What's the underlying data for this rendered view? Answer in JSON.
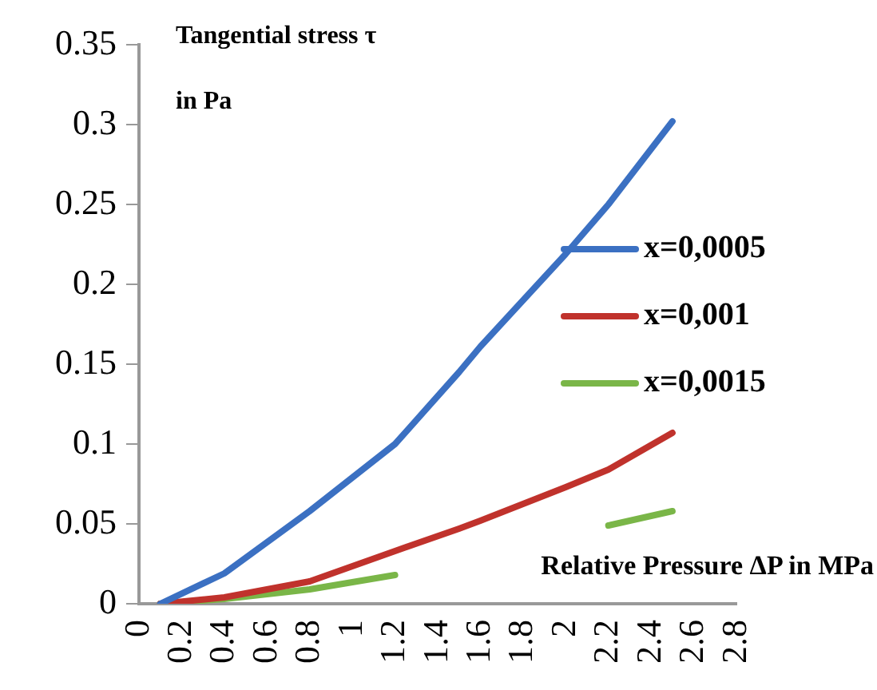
{
  "chart_data": {
    "type": "line",
    "xlabel": "Relative Pressure ΔP in MPa",
    "ylabel": "Tangential stress τ in Pa",
    "xlim": [
      0,
      2.8
    ],
    "xticks": [
      0,
      0.2,
      0.4,
      0.6,
      0.8,
      1,
      1.2,
      1.4,
      1.6,
      1.8,
      2,
      2.2,
      2.4,
      2.6,
      2.8
    ],
    "ylim": [
      0,
      0.35
    ],
    "yticks": [
      0,
      0.05,
      0.1,
      0.15,
      0.2,
      0.25,
      0.3,
      0.35
    ],
    "grid": false,
    "legend": "right",
    "marker": "none",
    "line_style": "solid",
    "x": [
      0.1,
      0.4,
      0.8,
      1.2,
      1.5,
      1.6,
      2.0,
      2.2,
      2.5
    ],
    "series": [
      {
        "name": "x=0,0005",
        "color": "#3b70c2",
        "values": [
          0,
          0.019,
          0.058,
          0.1,
          0.145,
          0.161,
          0.219,
          0.25,
          0.302
        ]
      },
      {
        "name": "x=0,001",
        "color": "#c0322c",
        "values": [
          0,
          0.004,
          0.014,
          0.033,
          0.047,
          0.052,
          0.073,
          0.084,
          0.107
        ]
      },
      {
        "name": "x=0,0015",
        "color": "#7ab648",
        "values": [
          0,
          0.003,
          0.009,
          0.018,
          null,
          null,
          null,
          0.049,
          0.058
        ]
      }
    ]
  }
}
